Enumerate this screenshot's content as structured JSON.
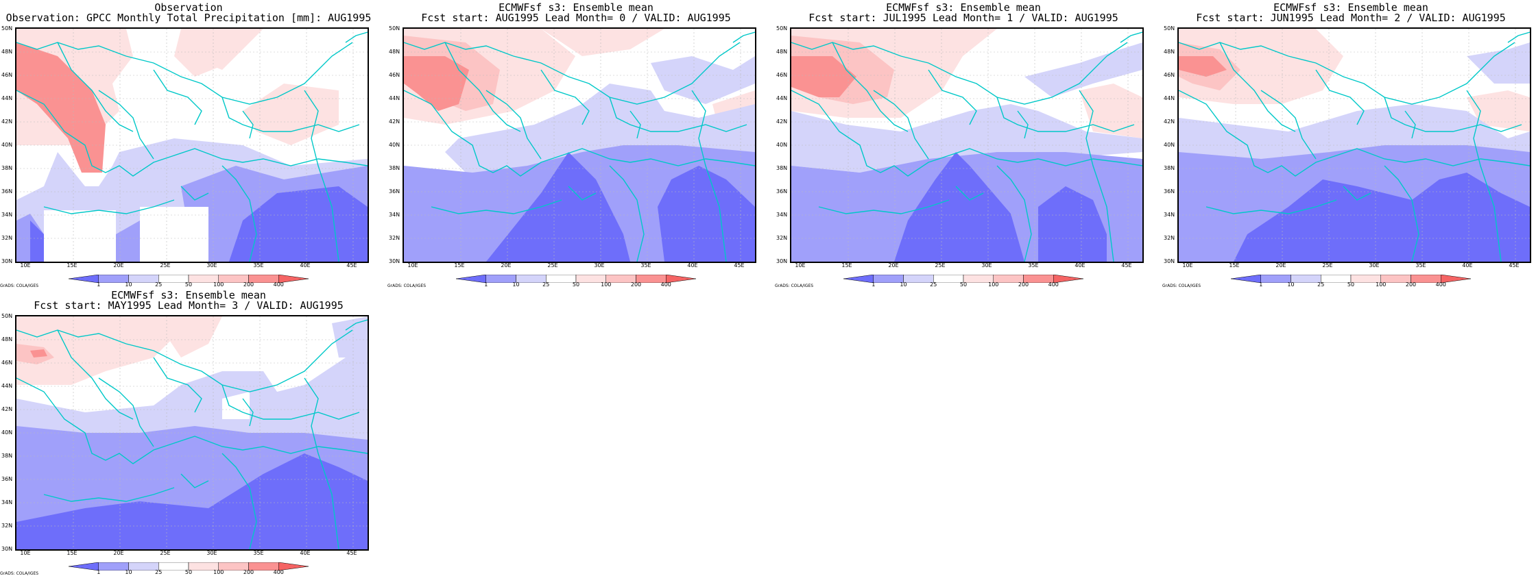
{
  "colors": {
    "border": "#000000",
    "coastline": "#00c8c8",
    "grid": "#bbbbbb",
    "levels": [
      "#6e6efa",
      "#a0a0fa",
      "#d4d4fa",
      "#ffffff",
      "#fde2e2",
      "#fcc4c4",
      "#fa9292",
      "#f56464"
    ]
  },
  "common": {
    "lat_labels": [
      "50N",
      "48N",
      "46N",
      "44N",
      "42N",
      "40N",
      "38N",
      "36N",
      "34N",
      "32N",
      "30N"
    ],
    "lon_labels": [
      "10E",
      "15E",
      "20E",
      "25E",
      "30E",
      "35E",
      "40E",
      "45E"
    ],
    "colorbar_labels": [
      "1",
      "10",
      "25",
      "50",
      "100",
      "200",
      "400"
    ],
    "credit": "GrADS: COLA/IGES"
  },
  "panels": [
    {
      "id": "obs",
      "title_line1": "Observation",
      "title_line2": "Observation: GPCC Monthly Total Precipitation [mm]: AUG1995"
    },
    {
      "id": "lead0",
      "title_line1": "ECMWFsf s3: Ensemble mean",
      "title_line2": "Fcst start: AUG1995  Lead Month= 0 / VALID: AUG1995"
    },
    {
      "id": "lead1",
      "title_line1": "ECMWFsf s3: Ensemble mean",
      "title_line2": "Fcst start: JUL1995  Lead Month= 1 / VALID: AUG1995"
    },
    {
      "id": "lead2",
      "title_line1": "ECMWFsf s3: Ensemble mean",
      "title_line2": "Fcst start: JUN1995  Lead Month= 2 / VALID: AUG1995"
    },
    {
      "id": "lead3",
      "title_line1": "ECMWFsf s3: Ensemble mean",
      "title_line2": "Fcst start: MAY1995  Lead Month= 3 / VALID: AUG1995"
    }
  ]
}
